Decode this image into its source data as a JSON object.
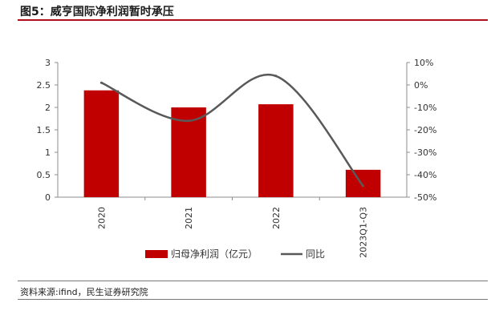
{
  "title": "图5：威亨国际净利润暂时承压",
  "source": "资料来源:ifind，民生证券研究院",
  "colors": {
    "bar": "#c00000",
    "line": "#595959",
    "title_rule": "#b0101a"
  },
  "chart_data": {
    "type": "bar",
    "categories": [
      "2020",
      "2021",
      "2022",
      "2023Q1-Q3"
    ],
    "series": [
      {
        "name": "归母净利润（亿元）",
        "type": "bar",
        "axis": "left",
        "values": [
          2.38,
          2.0,
          2.07,
          0.61
        ]
      },
      {
        "name": "同比",
        "type": "line",
        "axis": "right",
        "smooth": true,
        "values": [
          0.01,
          -0.16,
          0.04,
          -0.45
        ]
      }
    ],
    "y_left": {
      "min": 0,
      "max": 3,
      "ticks": [
        "0",
        "0.5",
        "1",
        "1.5",
        "2",
        "2.5",
        "3"
      ],
      "tick_values": [
        0,
        0.5,
        1,
        1.5,
        2,
        2.5,
        3
      ]
    },
    "y_right": {
      "min": -0.5,
      "max": 0.1,
      "ticks": [
        "-50%",
        "-40%",
        "-30%",
        "-20%",
        "-10%",
        "0%",
        "10%"
      ],
      "tick_values": [
        -0.5,
        -0.4,
        -0.3,
        -0.2,
        -0.1,
        0,
        0.1
      ]
    },
    "legend": {
      "position": "bottom",
      "labels": [
        "归母净利润（亿元）",
        "同比"
      ]
    },
    "grid": false
  }
}
